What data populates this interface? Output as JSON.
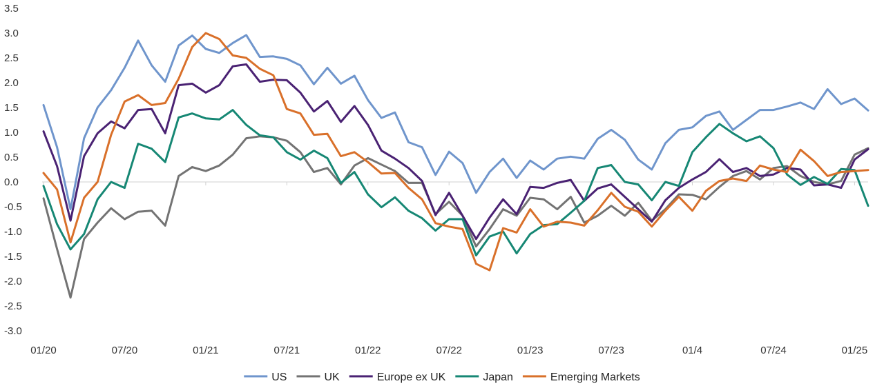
{
  "chart_data": {
    "type": "line",
    "title": "",
    "xlabel": "",
    "ylabel": "",
    "ylim": [
      -3.0,
      3.5
    ],
    "yticks": [
      3.5,
      3.0,
      2.5,
      2.0,
      1.5,
      1.0,
      0.5,
      0.0,
      -0.5,
      -1.0,
      -1.5,
      -2.0,
      -2.5,
      -3.0
    ],
    "ytick_labels": [
      "3.5",
      "3.0",
      "2.5",
      "2.0",
      "1.5",
      "1.0",
      "0.5",
      "0.0",
      "-0.5",
      "-1.0",
      "-1.5",
      "-2.0",
      "-2.5",
      "-3.0"
    ],
    "xtick_labels": [
      "01/20",
      "07/20",
      "01/21",
      "07/21",
      "01/22",
      "07/22",
      "01/23",
      "07/23",
      "01/4",
      "07/24",
      "01/25"
    ],
    "xtick_month_index": [
      0,
      6,
      12,
      18,
      24,
      30,
      36,
      42,
      48,
      54,
      60
    ],
    "x_months": 62,
    "grid": false,
    "legend_position": "bottom",
    "series": [
      {
        "name": "US",
        "color": "#6f95cc",
        "values": [
          1.55,
          0.7,
          -0.55,
          0.88,
          1.5,
          1.85,
          2.3,
          2.85,
          2.35,
          2.02,
          2.75,
          2.95,
          2.68,
          2.6,
          2.8,
          2.96,
          2.52,
          2.53,
          2.48,
          2.35,
          1.97,
          2.3,
          1.98,
          2.14,
          1.65,
          1.29,
          1.4,
          0.8,
          0.7,
          0.14,
          0.61,
          0.38,
          -0.22,
          0.2,
          0.47,
          0.08,
          0.43,
          0.25,
          0.47,
          0.51,
          0.47,
          0.87,
          1.05,
          0.85,
          0.45,
          0.25,
          0.78,
          1.05,
          1.1,
          1.33,
          1.42,
          1.05,
          1.25,
          1.45,
          1.45,
          1.52,
          1.6,
          1.47,
          1.87,
          1.57,
          1.68,
          1.44
        ]
      },
      {
        "name": "UK",
        "color": "#737373",
        "values": [
          -0.33,
          -1.35,
          -2.33,
          -1.15,
          -0.82,
          -0.53,
          -0.75,
          -0.6,
          -0.58,
          -0.88,
          0.12,
          0.3,
          0.22,
          0.33,
          0.55,
          0.88,
          0.92,
          0.9,
          0.83,
          0.6,
          0.2,
          0.28,
          -0.05,
          0.33,
          0.48,
          0.35,
          0.22,
          -0.02,
          -0.02,
          -0.65,
          -0.4,
          -0.68,
          -1.3,
          -0.95,
          -0.55,
          -0.68,
          -0.32,
          -0.35,
          -0.55,
          -0.3,
          -0.82,
          -0.68,
          -0.48,
          -0.68,
          -0.42,
          -0.78,
          -0.55,
          -0.25,
          -0.26,
          -0.35,
          -0.1,
          0.12,
          0.22,
          0.05,
          0.28,
          0.32,
          0.12,
          0.0,
          -0.05,
          0.02,
          0.55,
          0.68
        ]
      },
      {
        "name": "Europe ex UK",
        "color": "#4a2273",
        "values": [
          1.02,
          0.32,
          -0.78,
          0.52,
          0.98,
          1.22,
          1.08,
          1.45,
          1.47,
          0.98,
          1.95,
          1.98,
          1.8,
          1.95,
          2.33,
          2.37,
          2.02,
          2.06,
          2.05,
          1.8,
          1.42,
          1.63,
          1.21,
          1.53,
          1.15,
          0.63,
          0.47,
          0.28,
          0.02,
          -0.67,
          -0.22,
          -0.68,
          -1.15,
          -0.72,
          -0.35,
          -0.65,
          -0.1,
          -0.12,
          -0.02,
          0.04,
          -0.38,
          -0.13,
          -0.05,
          -0.3,
          -0.55,
          -0.8,
          -0.37,
          -0.12,
          0.05,
          0.2,
          0.46,
          0.2,
          0.28,
          0.12,
          0.15,
          0.28,
          0.25,
          -0.07,
          -0.05,
          -0.12,
          0.45,
          0.66
        ]
      },
      {
        "name": "Japan",
        "color": "#168774",
        "values": [
          -0.08,
          -0.85,
          -1.36,
          -1.05,
          -0.35,
          0.0,
          -0.12,
          0.77,
          0.67,
          0.4,
          1.3,
          1.38,
          1.28,
          1.26,
          1.45,
          1.15,
          0.94,
          0.9,
          0.6,
          0.45,
          0.63,
          0.48,
          -0.02,
          0.2,
          -0.25,
          -0.51,
          -0.31,
          -0.58,
          -0.73,
          -0.98,
          -0.75,
          -0.75,
          -1.48,
          -1.1,
          -1.0,
          -1.44,
          -1.05,
          -0.87,
          -0.85,
          -0.62,
          -0.38,
          0.28,
          0.34,
          0.0,
          -0.05,
          -0.37,
          0.0,
          -0.08,
          0.6,
          0.9,
          1.17,
          0.98,
          0.82,
          0.92,
          0.68,
          0.15,
          -0.06,
          0.1,
          -0.04,
          0.26,
          0.24,
          -0.48
        ]
      },
      {
        "name": "Emerging Markets",
        "color": "#d9702a",
        "values": [
          0.18,
          -0.15,
          -1.22,
          -0.32,
          0.0,
          0.95,
          1.62,
          1.75,
          1.55,
          1.59,
          2.08,
          2.72,
          3.0,
          2.88,
          2.55,
          2.5,
          2.28,
          2.15,
          1.47,
          1.38,
          0.95,
          0.97,
          0.52,
          0.6,
          0.4,
          0.17,
          0.18,
          -0.12,
          -0.35,
          -0.83,
          -0.9,
          -0.95,
          -1.65,
          -1.78,
          -0.93,
          -1.02,
          -0.55,
          -0.9,
          -0.8,
          -0.82,
          -0.88,
          -0.57,
          -0.22,
          -0.5,
          -0.6,
          -0.9,
          -0.58,
          -0.3,
          -0.58,
          -0.18,
          0.02,
          0.07,
          0.02,
          0.33,
          0.25,
          0.2,
          0.65,
          0.42,
          0.12,
          0.2,
          0.22,
          0.24
        ]
      }
    ]
  }
}
